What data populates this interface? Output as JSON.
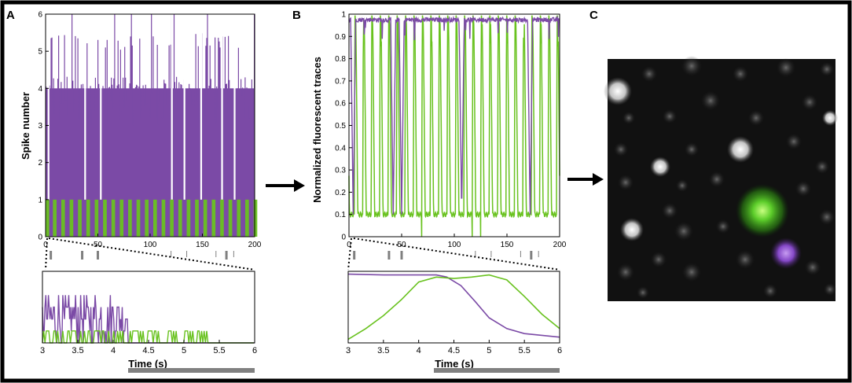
{
  "panels": {
    "a": {
      "letter": "A",
      "top_ylabel": "Spike number",
      "top_yticks": [
        "0",
        "1",
        "2",
        "3",
        "4",
        "5",
        "6"
      ],
      "top_xticks": [
        "0",
        "50",
        "100",
        "150",
        "200"
      ],
      "bottom_xticks": [
        "3",
        "3.5",
        "4",
        "4.5",
        "5",
        "5.5",
        "6"
      ],
      "bottom_xlabel": "Time (s)"
    },
    "b": {
      "letter": "B",
      "top_ylabel": "Normalized fluorescent traces",
      "top_yticks": [
        "0",
        "0.1",
        "0.2",
        "0.3",
        "0.4",
        "0.5",
        "0.6",
        "0.7",
        "0.8",
        "0.9",
        "1"
      ],
      "top_xticks": [
        "0",
        "50",
        "100",
        "150",
        "200"
      ],
      "bottom_xticks": [
        "3",
        "3.5",
        "4",
        "4.5",
        "5",
        "5.5",
        "6"
      ],
      "bottom_xlabel": "Time (s)"
    },
    "c": {
      "letter": "C",
      "image_description": "fluorescence micrograph with green and purple labeled cells"
    }
  },
  "colors": {
    "purple": "#7b4aa6",
    "green": "#69c21f",
    "gray": "#808080",
    "black": "#000000"
  },
  "chart_data": [
    {
      "id": "A-top",
      "type": "line",
      "title": "",
      "xlabel": "",
      "ylabel": "Spike number",
      "xlim": [
        0,
        200
      ],
      "ylim": [
        0,
        6
      ],
      "series": [
        {
          "name": "purple",
          "description": "dense spike counts alternating between 0 and 3-6",
          "baseline_high": 4,
          "peak_max": 6
        },
        {
          "name": "green",
          "values_binary": [
            0,
            1
          ],
          "pulse_starts": [
            0,
            7,
            15,
            23,
            31,
            39,
            47,
            55,
            63,
            71,
            79,
            87,
            95,
            103,
            111,
            119,
            127,
            135,
            143,
            151,
            159,
            167,
            175,
            183,
            191,
            199
          ]
        }
      ],
      "gap_times": [
        2,
        37,
        52,
        120,
        132,
        148,
        168,
        180
      ],
      "event_marks": [
        {
          "x": 5,
          "h": "tall"
        },
        {
          "x": 35,
          "h": "tall"
        },
        {
          "x": 50,
          "h": "tall"
        },
        {
          "x": 120,
          "h": "short"
        },
        {
          "x": 135,
          "h": "short"
        },
        {
          "x": 163,
          "h": "short"
        },
        {
          "x": 173,
          "h": "tall"
        },
        {
          "x": 180,
          "h": "short"
        }
      ]
    },
    {
      "id": "A-bottom",
      "type": "line",
      "xlabel": "Time (s)",
      "xlim": [
        3,
        6
      ],
      "ylim": [
        0,
        6
      ],
      "series": [
        {
          "name": "purple",
          "description": "spikes 1-4 between 3 and 4.2 s, near zero after"
        },
        {
          "name": "green",
          "description": "binary 0-1 fluctuations between 3 and 5.3 s, flat after"
        }
      ],
      "stimulus_bar": [
        4.1,
        6
      ]
    },
    {
      "id": "B-top",
      "type": "line",
      "ylabel": "Normalized fluorescent traces",
      "xlim": [
        0,
        200
      ],
      "ylim": [
        0,
        1
      ],
      "series": [
        {
          "name": "green",
          "baseline": 0.1,
          "peak": 1.0,
          "pulse_period": 8
        },
        {
          "name": "purple",
          "baseline": 0.98,
          "dips_to": 0.1,
          "dip_times": [
            4,
            42,
            50,
            107,
            172
          ]
        }
      ],
      "event_marks": [
        {
          "x": 5,
          "h": "tall"
        },
        {
          "x": 38,
          "h": "tall"
        },
        {
          "x": 50,
          "h": "tall"
        },
        {
          "x": 120,
          "h": "short"
        },
        {
          "x": 135,
          "h": "short"
        },
        {
          "x": 163,
          "h": "short"
        },
        {
          "x": 173,
          "h": "tall"
        },
        {
          "x": 180,
          "h": "short"
        }
      ]
    },
    {
      "id": "B-bottom",
      "type": "line",
      "xlabel": "Time (s)",
      "xlim": [
        3,
        6
      ],
      "ylim": [
        0,
        1
      ],
      "series": [
        {
          "name": "purple",
          "x": [
            3,
            3.5,
            4,
            4.25,
            4.4,
            4.6,
            4.8,
            5,
            5.25,
            5.5,
            6
          ],
          "y": [
            0.96,
            0.95,
            0.95,
            0.95,
            0.92,
            0.8,
            0.58,
            0.35,
            0.2,
            0.13,
            0.08
          ]
        },
        {
          "name": "green",
          "x": [
            3,
            3.25,
            3.5,
            3.75,
            4,
            4.25,
            4.5,
            4.75,
            5,
            5.25,
            5.5,
            5.75,
            6
          ],
          "y": [
            0.05,
            0.2,
            0.38,
            0.6,
            0.85,
            0.92,
            0.9,
            0.92,
            0.95,
            0.88,
            0.65,
            0.4,
            0.2
          ]
        }
      ],
      "stimulus_bar": [
        4.1,
        6
      ]
    }
  ]
}
